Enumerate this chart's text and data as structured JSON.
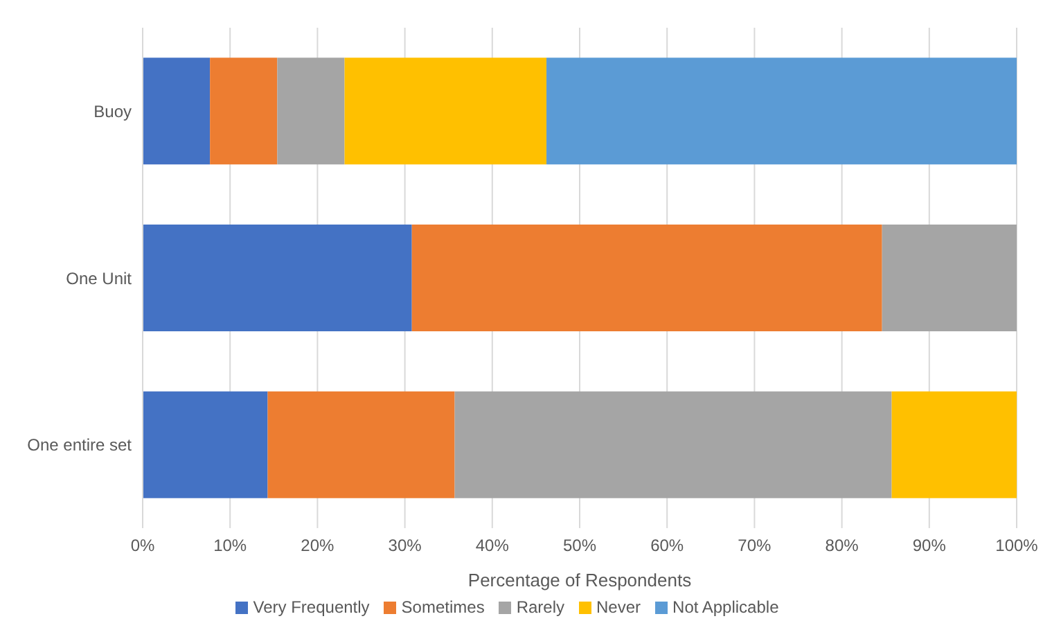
{
  "chart_data": {
    "type": "bar",
    "orientation": "horizontal",
    "stacked": true,
    "xlabel": "Percentage of Respondents",
    "categories": [
      "Buoy",
      "One Unit",
      "One entire set"
    ],
    "series": [
      {
        "name": "Very Frequently",
        "color": "#4472c4",
        "values": [
          7.7,
          30.8,
          14.3
        ]
      },
      {
        "name": "Sometimes",
        "color": "#ed7d31",
        "values": [
          7.7,
          53.8,
          21.4
        ]
      },
      {
        "name": "Rarely",
        "color": "#a5a5a5",
        "values": [
          7.7,
          15.4,
          50.0
        ]
      },
      {
        "name": "Never",
        "color": "#ffc000",
        "values": [
          23.1,
          null,
          14.3
        ]
      },
      {
        "name": "Not Applicable",
        "color": "#5b9bd5",
        "values": [
          53.8,
          null,
          null
        ]
      }
    ],
    "xlim": [
      0,
      100
    ],
    "xticks": [
      {
        "value": 0,
        "label": "0%"
      },
      {
        "value": 10,
        "label": "10%"
      },
      {
        "value": 20,
        "label": "20%"
      },
      {
        "value": 30,
        "label": "30%"
      },
      {
        "value": 40,
        "label": "40%"
      },
      {
        "value": 50,
        "label": "50%"
      },
      {
        "value": 60,
        "label": "60%"
      },
      {
        "value": 70,
        "label": "70%"
      },
      {
        "value": 80,
        "label": "80%"
      },
      {
        "value": 90,
        "label": "90%"
      },
      {
        "value": 100,
        "label": "100%"
      }
    ],
    "grid": "x",
    "legend": "bottom"
  }
}
